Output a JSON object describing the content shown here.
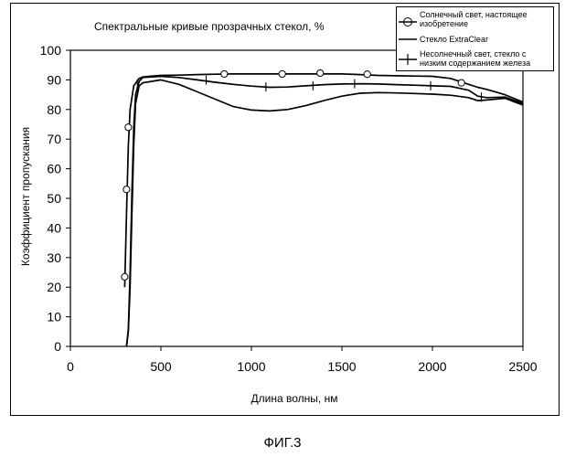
{
  "figure": {
    "caption": "ФИГ.3"
  },
  "chart_data": {
    "type": "line",
    "title": "Спектральные кривые прозрачных стекол, %",
    "xlabel": "Длина волны, нм",
    "ylabel": "Коэффициент пропускания",
    "xlim": [
      0,
      2500
    ],
    "ylim": [
      0,
      100
    ],
    "xticks": [
      0,
      500,
      1000,
      1500,
      2000,
      2500
    ],
    "yticks": [
      0,
      10,
      20,
      30,
      40,
      50,
      60,
      70,
      80,
      90,
      100
    ],
    "grid": false,
    "legend_position": "top-right",
    "series": [
      {
        "name": "Солнечный свет, настоящее изобретение",
        "marker": "circle",
        "x": [
          300,
          310,
          320,
          330,
          350,
          380,
          400,
          450,
          500,
          600,
          700,
          800,
          900,
          1000,
          1100,
          1200,
          1300,
          1400,
          1500,
          1600,
          1700,
          1800,
          1900,
          2000,
          2100,
          2200,
          2250,
          2300,
          2400,
          2500
        ],
        "y": [
          20,
          45,
          68,
          80,
          88,
          90.5,
          91,
          91.3,
          91.5,
          91.6,
          91.8,
          91.9,
          92,
          92,
          92,
          92,
          92,
          92,
          92,
          91.8,
          91.5,
          91.4,
          91.3,
          91.2,
          90.5,
          88.5,
          87.5,
          86.8,
          85,
          82.5
        ],
        "marker_points": [
          [
            300,
            23.5
          ],
          [
            310,
            53
          ],
          [
            320,
            74
          ],
          [
            850,
            92
          ],
          [
            1170,
            92
          ],
          [
            1380,
            92.3
          ],
          [
            1640,
            91.9
          ],
          [
            2160,
            89
          ]
        ]
      },
      {
        "name": "Стекло ExtraClear",
        "marker": "none",
        "x": [
          310,
          320,
          330,
          340,
          350,
          360,
          380,
          400,
          450,
          500,
          600,
          700,
          800,
          900,
          1000,
          1100,
          1200,
          1300,
          1400,
          1500,
          1600,
          1700,
          1800,
          1900,
          2000,
          2100,
          2200,
          2250,
          2300,
          2400,
          2500
        ],
        "y": [
          0,
          5,
          20,
          45,
          68,
          82,
          88,
          89,
          89.5,
          90,
          88.5,
          86,
          83.5,
          81,
          79.8,
          79.5,
          80,
          81.3,
          83,
          84.5,
          85.5,
          85.7,
          85.6,
          85.4,
          85.2,
          84.8,
          84,
          83,
          83.2,
          83.8,
          81.5
        ]
      },
      {
        "name": "Несолнечный свет, стекло с низким содержанием железа",
        "marker": "plus",
        "x": [
          310,
          320,
          330,
          340,
          350,
          360,
          380,
          400,
          450,
          500,
          600,
          700,
          800,
          900,
          1000,
          1100,
          1200,
          1300,
          1400,
          1500,
          1600,
          1700,
          1800,
          1900,
          2000,
          2100,
          2200,
          2250,
          2300,
          2400,
          2500
        ],
        "y": [
          0,
          6,
          25,
          52,
          74,
          85,
          89.5,
          90.8,
          91,
          91.2,
          90.8,
          90,
          89.2,
          88.5,
          87.9,
          87.5,
          87.6,
          88,
          88.4,
          88.6,
          88.7,
          88.6,
          88.4,
          88.2,
          88,
          87.8,
          86.5,
          84.5,
          84,
          84.2,
          82
        ],
        "marker_points": [
          [
            370,
            88.7
          ],
          [
            750,
            89.9
          ],
          [
            1080,
            87.6
          ],
          [
            1340,
            88
          ],
          [
            1570,
            88.7
          ],
          [
            1990,
            88
          ],
          [
            2270,
            84.2
          ]
        ]
      }
    ]
  }
}
